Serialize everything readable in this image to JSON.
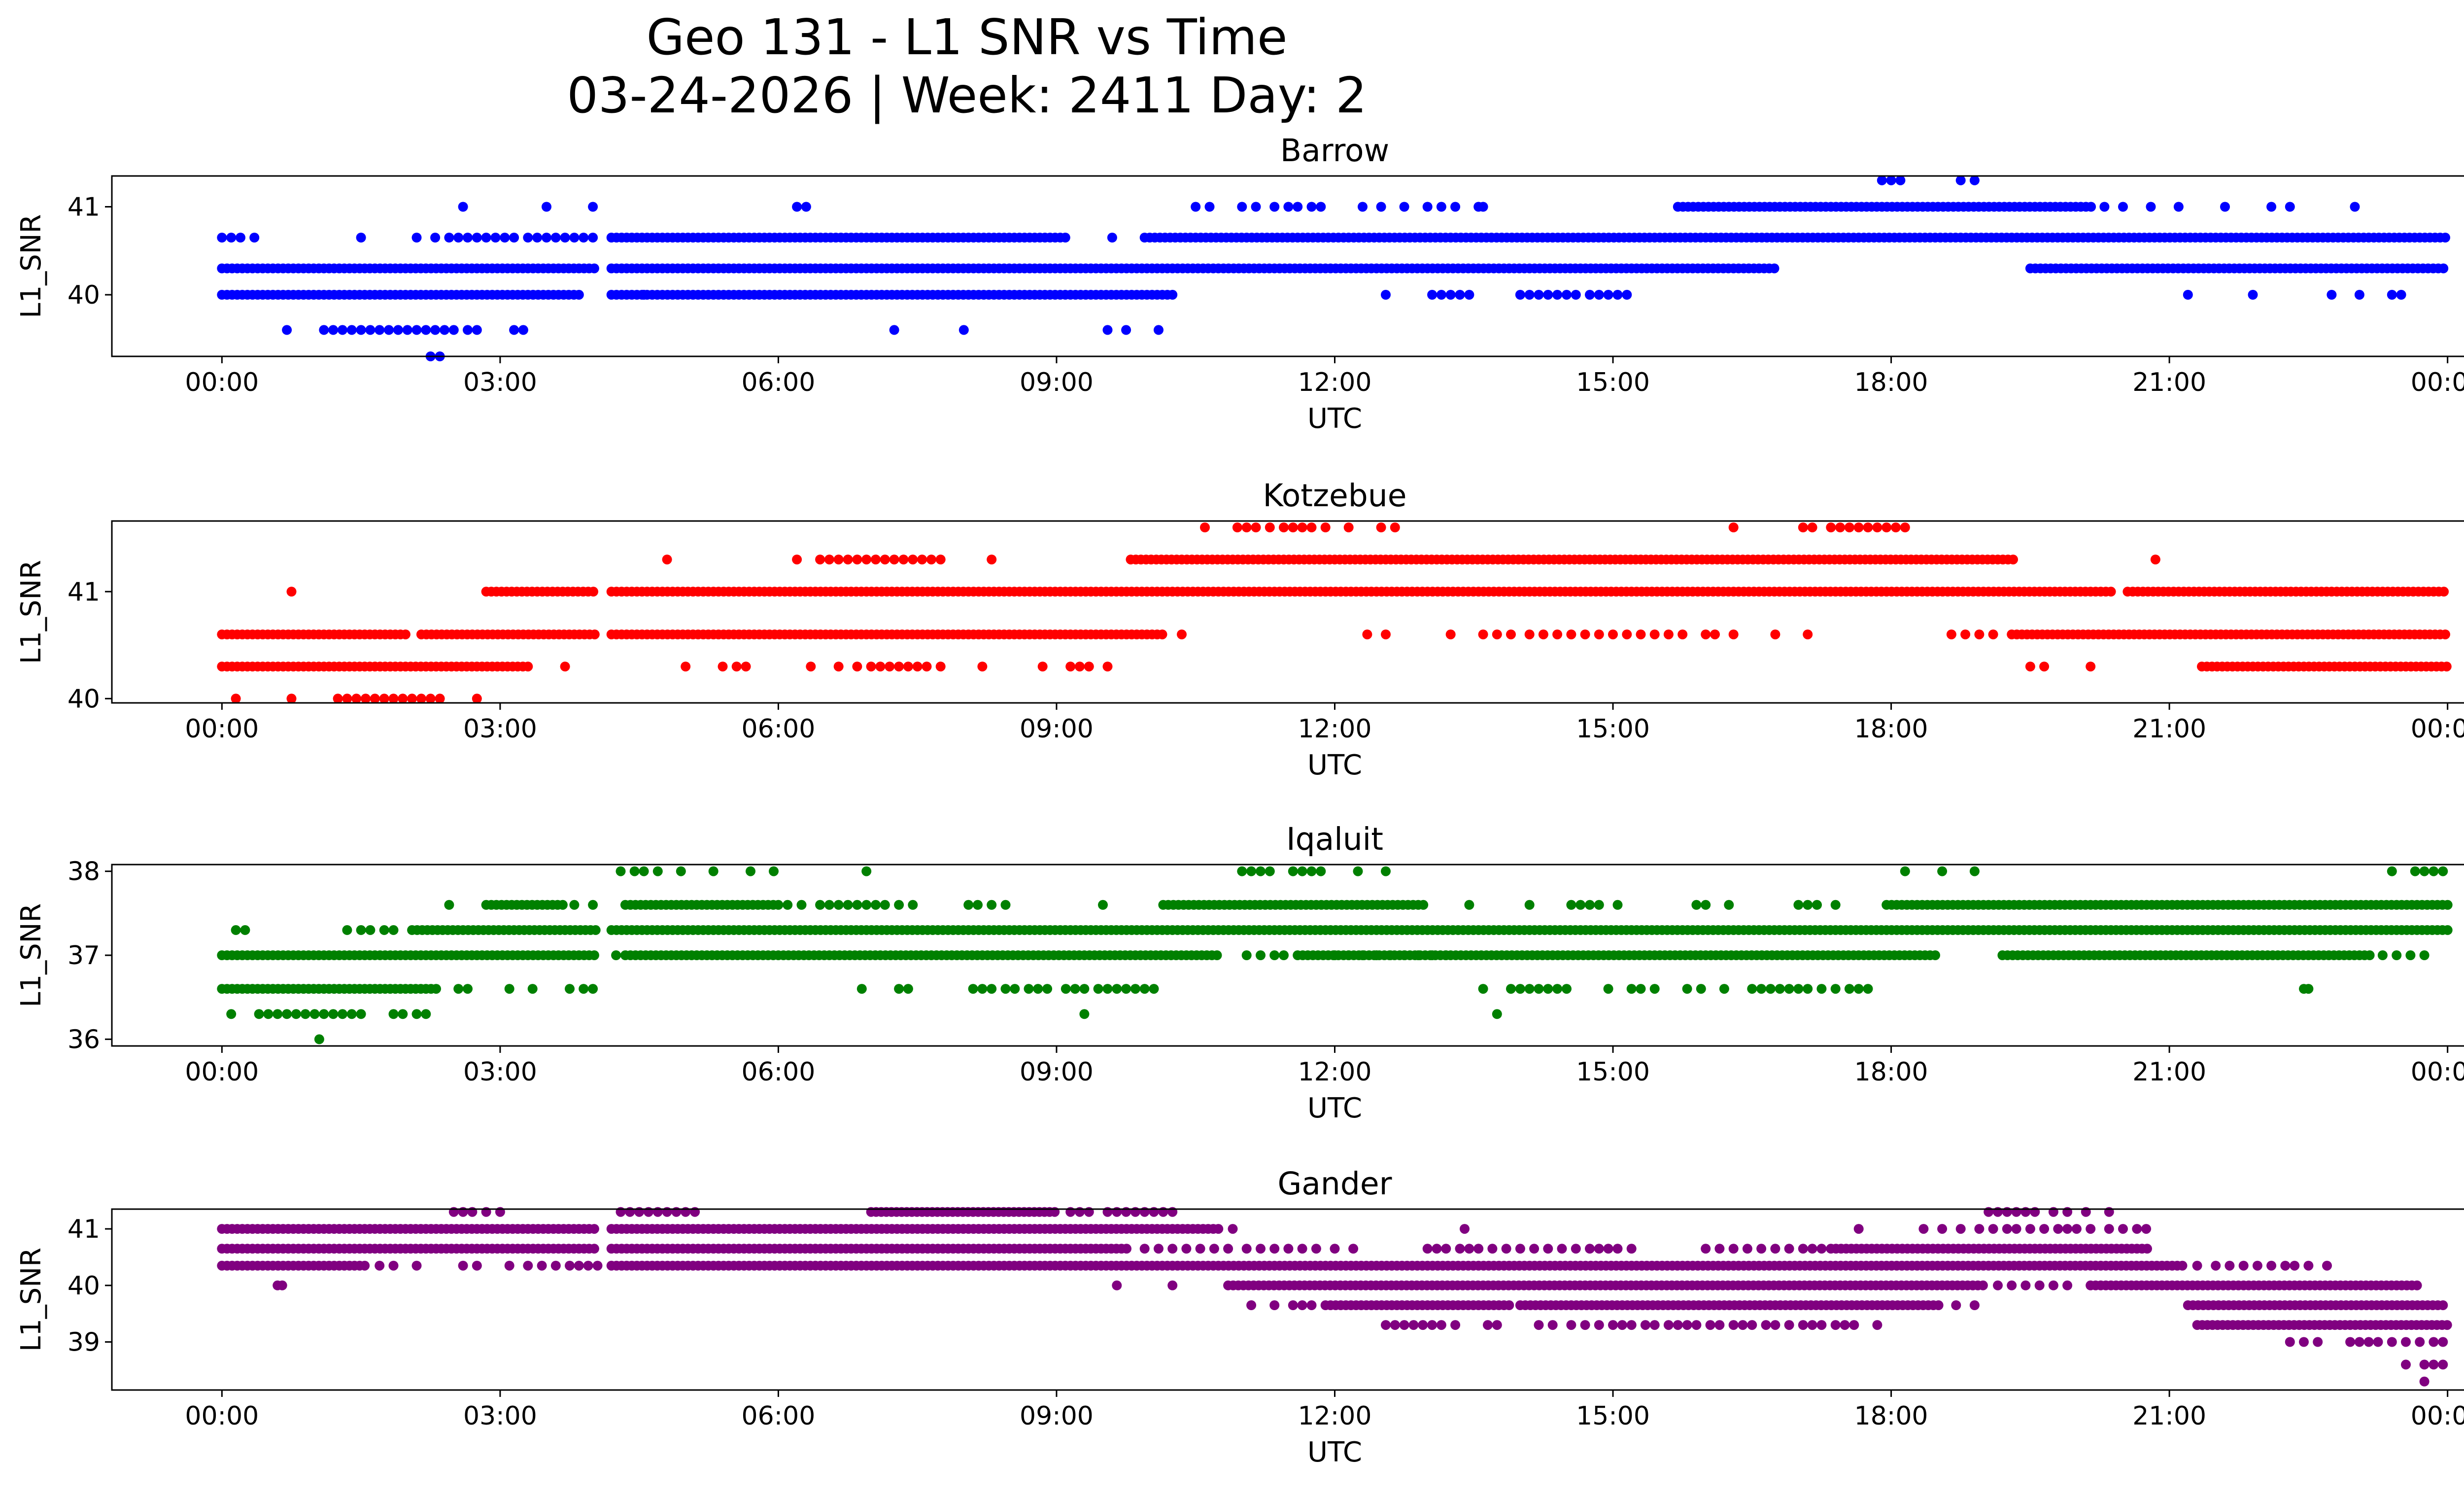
{
  "figure": {
    "title_line1": "Geo 131 - L1 SNR vs Time",
    "title_line2": "03-24-2026 | Week: 2411 Day: 2"
  },
  "chart_data": [
    {
      "type": "scatter",
      "title": "Barrow",
      "xlabel": "UTC",
      "ylabel": "L1_SNR",
      "color": "#0000ff",
      "x_unit": "hours UTC",
      "xlim": [
        0,
        24
      ],
      "ylim": [
        39.3,
        41.35
      ],
      "xticks": [
        "00:00",
        "03:00",
        "06:00",
        "09:00",
        "12:00",
        "15:00",
        "18:00",
        "21:00",
        "00:00"
      ],
      "yticks": [
        40,
        41
      ],
      "series": [
        {
          "y": 40.0,
          "segments": [
            [
              0.0,
              3.85
            ],
            [
              4.2,
              10.25
            ]
          ]
        },
        {
          "y": 40.0,
          "points": [
            4.55,
            12.55,
            13.05,
            13.15,
            13.25,
            13.35,
            13.45,
            14.0,
            14.1,
            14.2,
            14.3,
            14.4,
            14.5,
            14.6,
            14.75,
            14.85,
            14.95,
            15.05,
            15.15,
            21.2,
            21.9,
            22.75,
            23.05,
            23.4,
            23.5
          ]
        },
        {
          "y": 40.3,
          "segments": [
            [
              0.0,
              4.05
            ],
            [
              4.2,
              16.75
            ],
            [
              19.5,
              24.0
            ]
          ]
        },
        {
          "y": 40.65,
          "segments": [
            [
              4.2,
              9.1
            ],
            [
              9.95,
              24.0
            ]
          ]
        },
        {
          "y": 40.65,
          "points": [
            0.0,
            0.1,
            0.2,
            0.35,
            1.5,
            2.1,
            2.3,
            2.45,
            2.55,
            2.65,
            2.75,
            2.85,
            2.95,
            3.05,
            3.15,
            3.3,
            3.4,
            3.5,
            3.6,
            3.7,
            3.8,
            3.9,
            4.0,
            9.6
          ]
        },
        {
          "y": 41.0,
          "segments": [
            [
              15.7,
              20.2
            ]
          ]
        },
        {
          "y": 41.0,
          "points": [
            2.6,
            3.5,
            4.0,
            6.2,
            6.3,
            10.5,
            10.65,
            11.0,
            11.15,
            11.35,
            11.5,
            11.6,
            11.75,
            11.85,
            12.3,
            12.5,
            12.75,
            13.0,
            13.15,
            13.3,
            13.55,
            13.6,
            20.3,
            20.5,
            20.8,
            21.1,
            21.6,
            22.1,
            22.3,
            23.0
          ]
        },
        {
          "y": 39.6,
          "points": [
            0.7,
            1.1,
            1.2,
            1.3,
            1.4,
            1.5,
            1.6,
            1.7,
            1.8,
            1.9,
            2.0,
            2.1,
            2.2,
            2.3,
            2.4,
            2.5,
            2.65,
            2.75,
            3.15,
            3.25,
            7.25,
            8.0,
            9.55,
            9.75,
            10.1
          ]
        },
        {
          "y": 39.3,
          "points": [
            2.25,
            2.35
          ]
        },
        {
          "y": 41.3,
          "points": [
            17.9,
            18.0,
            18.1,
            18.75,
            18.9
          ]
        }
      ]
    },
    {
      "type": "scatter",
      "title": "Kotzebue",
      "xlabel": "UTC",
      "ylabel": "L1_SNR",
      "color": "#ff0000",
      "x_unit": "hours UTC",
      "xlim": [
        0,
        24
      ],
      "ylim": [
        39.96,
        41.66
      ],
      "xticks": [
        "00:00",
        "03:00",
        "06:00",
        "09:00",
        "12:00",
        "15:00",
        "18:00",
        "21:00",
        "00:00"
      ],
      "yticks": [
        40,
        41
      ],
      "series": [
        {
          "y": 40.0,
          "points": [
            0.15,
            0.75,
            1.25,
            1.35,
            1.45,
            1.55,
            1.65,
            1.75,
            1.85,
            1.95,
            2.05,
            2.15,
            2.25,
            2.35,
            2.75
          ]
        },
        {
          "y": 40.3,
          "segments": [
            [
              0.0,
              3.35
            ],
            [
              21.35,
              24.0
            ]
          ]
        },
        {
          "y": 40.3,
          "points": [
            3.7,
            5.0,
            5.4,
            5.55,
            5.65,
            6.35,
            6.65,
            6.85,
            7.0,
            7.1,
            7.2,
            7.3,
            7.4,
            7.5,
            7.6,
            7.75,
            8.2,
            8.85,
            9.15,
            9.25,
            9.35,
            9.55,
            19.5,
            19.65,
            20.15
          ]
        },
        {
          "y": 40.6,
          "segments": [
            [
              0.0,
              2.0
            ],
            [
              2.15,
              4.05
            ],
            [
              4.2,
              10.15
            ],
            [
              19.3,
              24.0
            ]
          ]
        },
        {
          "y": 40.6,
          "points": [
            10.35,
            12.35,
            12.55,
            13.25,
            13.6,
            13.75,
            13.9,
            14.1,
            14.25,
            14.4,
            14.55,
            14.7,
            14.85,
            15.0,
            15.15,
            15.3,
            15.45,
            15.6,
            15.75,
            16.0,
            16.1,
            16.3,
            16.75,
            17.1,
            18.65,
            18.8,
            18.95,
            19.1
          ]
        },
        {
          "y": 41.0,
          "segments": [
            [
              2.85,
              4.05
            ],
            [
              4.2,
              20.4
            ],
            [
              20.55,
              24.0
            ]
          ]
        },
        {
          "y": 41.0,
          "points": [
            0.75
          ]
        },
        {
          "y": 41.3,
          "segments": [
            [
              9.8,
              19.35
            ]
          ]
        },
        {
          "y": 41.3,
          "points": [
            4.8,
            6.2,
            6.45,
            6.55,
            6.65,
            6.75,
            6.85,
            6.95,
            7.05,
            7.15,
            7.25,
            7.35,
            7.45,
            7.55,
            7.65,
            7.75,
            8.3,
            20.85
          ]
        },
        {
          "y": 41.6,
          "points": [
            10.6,
            10.95,
            11.05,
            11.15,
            11.3,
            11.45,
            11.55,
            11.65,
            11.75,
            11.9,
            12.15,
            12.5,
            12.65,
            16.3,
            17.05,
            17.15,
            17.35,
            17.45,
            17.55,
            17.65,
            17.75,
            17.85,
            17.95,
            18.05,
            18.15
          ]
        }
      ]
    },
    {
      "type": "scatter",
      "title": "Iqaluit",
      "xlabel": "UTC",
      "ylabel": "L1_SNR",
      "color": "#008000",
      "x_unit": "hours UTC",
      "xlim": [
        0,
        24
      ],
      "ylim": [
        35.92,
        38.08
      ],
      "xticks": [
        "00:00",
        "03:00",
        "06:00",
        "09:00",
        "12:00",
        "15:00",
        "18:00",
        "21:00",
        "00:00"
      ],
      "yticks": [
        36,
        37,
        38
      ],
      "series": [
        {
          "y": 36.0,
          "points": [
            1.05
          ]
        },
        {
          "y": 36.3,
          "points": [
            0.1,
            0.4,
            0.5,
            0.6,
            0.7,
            0.8,
            0.9,
            1.0,
            1.1,
            1.2,
            1.3,
            1.4,
            1.5,
            1.85,
            1.95,
            2.1,
            2.2,
            9.3,
            13.75
          ]
        },
        {
          "y": 36.6,
          "segments": [
            [
              0.0,
              2.35
            ]
          ]
        },
        {
          "y": 36.6,
          "points": [
            2.55,
            2.65,
            3.1,
            3.35,
            3.75,
            3.9,
            4.0,
            6.9,
            7.3,
            7.4,
            8.1,
            8.2,
            8.3,
            8.45,
            8.55,
            8.7,
            8.8,
            8.9,
            9.1,
            9.2,
            9.3,
            9.45,
            9.55,
            9.65,
            9.75,
            9.85,
            9.95,
            10.05,
            13.6,
            13.9,
            14.0,
            14.1,
            14.2,
            14.3,
            14.4,
            14.5,
            14.95,
            15.2,
            15.3,
            15.45,
            15.8,
            15.95,
            16.2,
            16.5,
            16.6,
            16.7,
            16.8,
            16.9,
            17.0,
            17.1,
            17.25,
            17.4,
            17.55,
            17.65,
            17.75,
            22.45,
            22.5
          ]
        },
        {
          "y": 37.0,
          "segments": [
            [
              0.0,
              4.05
            ],
            [
              4.35,
              10.75
            ],
            [
              11.6,
              18.5
            ],
            [
              19.2,
              23.2
            ]
          ]
        },
        {
          "y": 37.0,
          "points": [
            4.25,
            11.05,
            11.2,
            11.35,
            11.45,
            12.0,
            12.15,
            12.3,
            12.45,
            12.6,
            12.75,
            12.9,
            13.05,
            13.2,
            23.3,
            23.45,
            23.6,
            23.75
          ]
        },
        {
          "y": 37.3,
          "segments": [
            [
              2.05,
              4.05
            ],
            [
              4.2,
              24.0
            ]
          ]
        },
        {
          "y": 37.3,
          "points": [
            0.15,
            0.25,
            1.35,
            1.5,
            1.6,
            1.75,
            1.85
          ]
        },
        {
          "y": 37.6,
          "segments": [
            [
              2.85,
              3.7
            ],
            [
              4.35,
              6.05
            ],
            [
              10.15,
              13.0
            ],
            [
              17.95,
              24.0
            ]
          ]
        },
        {
          "y": 37.6,
          "points": [
            2.45,
            3.8,
            4.0,
            6.1,
            6.25,
            6.45,
            6.55,
            6.65,
            6.75,
            6.85,
            6.95,
            7.05,
            7.15,
            7.3,
            7.45,
            8.05,
            8.15,
            8.3,
            8.45,
            9.5,
            13.45,
            14.1,
            14.55,
            14.65,
            14.75,
            14.85,
            15.05,
            15.9,
            16.0,
            16.25,
            17.0,
            17.1,
            17.2,
            17.4
          ]
        },
        {
          "y": 38.0,
          "points": [
            4.3,
            4.45,
            4.55,
            4.7,
            4.95,
            5.3,
            5.7,
            5.95,
            6.95,
            11.0,
            11.1,
            11.2,
            11.3,
            11.55,
            11.65,
            11.75,
            11.85,
            12.25,
            12.55,
            18.15,
            18.55,
            18.9,
            23.4,
            23.65,
            23.75,
            23.85,
            23.95
          ]
        }
      ]
    },
    {
      "type": "scatter",
      "title": "Gander",
      "xlabel": "UTC",
      "ylabel": "L1_SNR",
      "color": "#800080",
      "x_unit": "hours UTC",
      "xlim": [
        0,
        24
      ],
      "ylim": [
        38.15,
        41.35
      ],
      "xticks": [
        "00:00",
        "03:00",
        "06:00",
        "09:00",
        "12:00",
        "15:00",
        "18:00",
        "21:00",
        "00:00"
      ],
      "yticks": [
        39,
        40,
        41
      ],
      "series": [
        {
          "y": 38.3,
          "points": [
            23.75
          ]
        },
        {
          "y": 38.6,
          "points": [
            23.55,
            23.75,
            23.85,
            23.95
          ]
        },
        {
          "y": 39.0,
          "points": [
            22.3,
            22.45,
            22.6,
            22.95,
            23.05,
            23.15,
            23.25,
            23.4,
            23.55,
            23.7,
            23.85,
            23.95
          ]
        },
        {
          "y": 39.3,
          "segments": [
            [
              21.3,
              24.0
            ]
          ]
        },
        {
          "y": 39.3,
          "points": [
            12.55,
            12.65,
            12.75,
            12.85,
            12.95,
            13.05,
            13.15,
            13.3,
            13.65,
            13.75,
            14.2,
            14.35,
            14.55,
            14.7,
            14.85,
            15.0,
            15.1,
            15.2,
            15.35,
            15.45,
            15.6,
            15.7,
            15.8,
            15.9,
            16.05,
            16.15,
            16.3,
            16.4,
            16.5,
            16.65,
            16.75,
            16.9,
            17.05,
            17.15,
            17.25,
            17.4,
            17.5,
            17.6,
            17.85
          ]
        },
        {
          "y": 39.65,
          "segments": [
            [
              11.9,
              13.9
            ],
            [
              14.0,
              18.55
            ],
            [
              21.2,
              24.0
            ]
          ]
        },
        {
          "y": 39.65,
          "points": [
            11.1,
            11.35,
            11.55,
            11.65,
            11.75,
            18.7,
            18.9
          ]
        },
        {
          "y": 40.0,
          "segments": [
            [
              10.85,
              19.0
            ],
            [
              20.15,
              23.7
            ]
          ]
        },
        {
          "y": 40.0,
          "points": [
            0.6,
            0.65,
            9.65,
            10.25,
            19.15,
            19.3,
            19.45,
            19.6,
            19.75,
            19.9
          ]
        },
        {
          "y": 40.35,
          "segments": [
            [
              0.0,
              1.55
            ],
            [
              4.2,
              21.15
            ]
          ]
        },
        {
          "y": 40.35,
          "points": [
            1.7,
            1.85,
            2.1,
            2.6,
            2.75,
            3.1,
            3.3,
            3.45,
            3.6,
            3.75,
            3.85,
            3.95,
            4.05,
            21.3,
            21.5,
            21.65,
            21.8,
            21.95,
            22.1,
            22.25,
            22.35,
            22.5,
            22.7
          ]
        },
        {
          "y": 40.65,
          "segments": [
            [
              0.0,
              4.05
            ],
            [
              4.2,
              9.8
            ],
            [
              17.35,
              20.8
            ]
          ]
        },
        {
          "y": 40.65,
          "points": [
            9.95,
            10.1,
            10.25,
            10.4,
            10.55,
            10.7,
            10.85,
            11.05,
            11.2,
            11.35,
            11.5,
            11.65,
            11.8,
            12.0,
            12.2,
            13.0,
            13.1,
            13.2,
            13.35,
            13.45,
            13.55,
            13.7,
            13.85,
            14.0,
            14.15,
            14.3,
            14.45,
            14.6,
            14.75,
            14.85,
            14.95,
            15.05,
            15.2,
            16.0,
            16.15,
            16.3,
            16.45,
            16.6,
            16.75,
            16.9,
            17.05,
            17.15,
            17.25
          ]
        },
        {
          "y": 41.0,
          "segments": [
            [
              0.0,
              4.05
            ],
            [
              4.2,
              10.75
            ]
          ]
        },
        {
          "y": 41.0,
          "points": [
            10.9,
            13.4,
            17.65,
            18.35,
            18.55,
            18.75,
            18.95,
            19.1,
            19.25,
            19.35,
            19.5,
            19.65,
            19.8,
            19.9,
            20.0,
            20.15,
            20.35,
            20.5,
            20.65,
            20.75
          ]
        },
        {
          "y": 41.3,
          "segments": [
            [
              7.0,
              9.0
            ]
          ]
        },
        {
          "y": 41.3,
          "points": [
            2.5,
            2.6,
            2.7,
            2.85,
            3.0,
            4.3,
            4.4,
            4.5,
            4.6,
            4.7,
            4.8,
            4.9,
            5.0,
            5.1,
            9.15,
            9.25,
            9.35,
            9.55,
            9.65,
            9.75,
            9.85,
            9.95,
            10.05,
            10.15,
            10.25,
            19.05,
            19.15,
            19.25,
            19.35,
            19.45,
            19.55,
            19.75,
            19.9,
            20.1,
            20.35
          ]
        }
      ]
    }
  ]
}
